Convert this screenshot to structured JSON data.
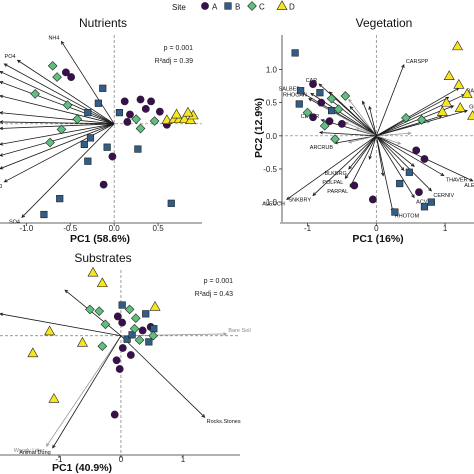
{
  "legend": {
    "title": "Site",
    "items": [
      {
        "label": "A",
        "color": "#3b0f4f",
        "shape": "circle"
      },
      {
        "label": "B",
        "color": "#2f5f86",
        "shape": "square"
      },
      {
        "label": "C",
        "color": "#5fbf7f",
        "shape": "diamond"
      },
      {
        "label": "D",
        "color": "#f6e51f",
        "shape": "triangle"
      }
    ]
  },
  "chart_data": [
    {
      "type": "scatter",
      "title": "Nutrients",
      "xlabel": "PC1 (58.6%)",
      "ylabel": "",
      "xlim": [
        -1.3,
        1.0
      ],
      "ylim": [
        -1.05,
        0.95
      ],
      "xticks": [
        -1.0,
        -0.5,
        0.0,
        0.5
      ],
      "xtick_labels": [
        "-1.0",
        "-0.5",
        "0.0",
        "0.5"
      ],
      "yticks": [],
      "grid": false,
      "p_text": "p = 0.001",
      "r2_text": "R²adj = 0.39",
      "vectors": [
        {
          "label": "NH4",
          "x": -0.6,
          "y": 0.88
        },
        {
          "label": "PO4",
          "x": -1.1,
          "y": 0.68
        },
        {
          "label": "",
          "x": -1.25,
          "y": 0.64
        },
        {
          "label": "",
          "x": -1.3,
          "y": 0.56
        },
        {
          "label": "",
          "x": -1.3,
          "y": 0.45
        },
        {
          "label": "",
          "x": -1.3,
          "y": 0.3
        },
        {
          "label": "",
          "x": -1.3,
          "y": 0.12
        },
        {
          "label": "",
          "x": -1.3,
          "y": 0.02
        },
        {
          "label": "",
          "x": -1.3,
          "y": -0.05
        },
        {
          "label": "",
          "x": -1.3,
          "y": -0.22
        },
        {
          "label": "",
          "x": -1.3,
          "y": -0.34
        },
        {
          "label": "",
          "x": -1.3,
          "y": -0.48
        },
        {
          "label": "Cl",
          "x": -1.25,
          "y": -0.62
        },
        {
          "label": "SO4",
          "x": -1.05,
          "y": -1.0
        }
      ],
      "points": [
        {
          "site": "A",
          "x": -0.55,
          "y": 0.55
        },
        {
          "site": "A",
          "x": -0.49,
          "y": 0.5
        },
        {
          "site": "A",
          "x": 0.12,
          "y": 0.24
        },
        {
          "site": "A",
          "x": 0.3,
          "y": 0.26
        },
        {
          "site": "A",
          "x": 0.42,
          "y": 0.24
        },
        {
          "site": "A",
          "x": 0.36,
          "y": 0.16
        },
        {
          "site": "A",
          "x": 0.52,
          "y": 0.13
        },
        {
          "site": "A",
          "x": 0.18,
          "y": 0.1
        },
        {
          "site": "A",
          "x": 0.15,
          "y": 0.02
        },
        {
          "site": "A",
          "x": 0.6,
          "y": -0.01
        },
        {
          "site": "A",
          "x": -0.02,
          "y": -0.35
        },
        {
          "site": "A",
          "x": -0.12,
          "y": -0.65
        },
        {
          "site": "B",
          "x": -0.13,
          "y": 0.38
        },
        {
          "site": "B",
          "x": -0.18,
          "y": 0.22
        },
        {
          "site": "B",
          "x": -0.3,
          "y": 0.12
        },
        {
          "site": "B",
          "x": 0.06,
          "y": 0.12
        },
        {
          "site": "B",
          "x": -0.27,
          "y": -0.15
        },
        {
          "site": "B",
          "x": -0.34,
          "y": -0.22
        },
        {
          "site": "B",
          "x": -0.08,
          "y": -0.25
        },
        {
          "site": "B",
          "x": 0.27,
          "y": -0.27
        },
        {
          "site": "B",
          "x": -0.3,
          "y": -0.4
        },
        {
          "site": "B",
          "x": -0.62,
          "y": -0.8
        },
        {
          "site": "B",
          "x": -0.8,
          "y": -0.97
        },
        {
          "site": "B",
          "x": 0.65,
          "y": -0.85
        },
        {
          "site": "C",
          "x": -0.7,
          "y": 0.62
        },
        {
          "site": "C",
          "x": -0.65,
          "y": 0.5
        },
        {
          "site": "C",
          "x": -0.9,
          "y": 0.32
        },
        {
          "site": "C",
          "x": -0.53,
          "y": 0.2
        },
        {
          "site": "C",
          "x": -0.42,
          "y": 0.05
        },
        {
          "site": "C",
          "x": -0.6,
          "y": -0.06
        },
        {
          "site": "C",
          "x": -0.73,
          "y": -0.2
        },
        {
          "site": "C",
          "x": 0.25,
          "y": 0.05
        },
        {
          "site": "C",
          "x": 0.46,
          "y": 0.03
        },
        {
          "site": "C",
          "x": 0.3,
          "y": -0.05
        },
        {
          "site": "D",
          "x": 0.6,
          "y": 0.04
        },
        {
          "site": "D",
          "x": 0.68,
          "y": 0.05
        },
        {
          "site": "D",
          "x": 0.74,
          "y": 0.05
        },
        {
          "site": "D",
          "x": 0.8,
          "y": 0.05
        },
        {
          "site": "D",
          "x": 0.87,
          "y": 0.04
        },
        {
          "site": "D",
          "x": 0.9,
          "y": 0.09
        },
        {
          "site": "D",
          "x": 0.84,
          "y": 0.12
        },
        {
          "site": "D",
          "x": 0.71,
          "y": 0.1
        }
      ]
    },
    {
      "type": "scatter",
      "title": "Vegetation",
      "xlabel": "PC1 (16%)",
      "ylabel": "PC2 (12.9%)",
      "xlim": [
        -1.4,
        1.42
      ],
      "ylim": [
        -1.3,
        1.52
      ],
      "xticks": [
        -1.0,
        0.0,
        1.0
      ],
      "xtick_labels": [
        "-1",
        "0",
        "1"
      ],
      "yticks": [
        1.0,
        0.5,
        0.0,
        -0.5,
        -1.0
      ],
      "ytick_labels": [
        "1.0",
        "0.5",
        "0.0",
        "-0.5",
        "-1.0"
      ],
      "grid": false,
      "vectors": [
        {
          "label": "CARSPP",
          "x": 0.4,
          "y": 1.07,
          "grey": false
        },
        {
          "label": "CAR",
          "x": -0.83,
          "y": 0.78,
          "grey": false
        },
        {
          "label": "SALBEB",
          "x": -1.08,
          "y": 0.65,
          "grey": false
        },
        {
          "label": "",
          "x": -0.95,
          "y": 0.64,
          "grey": false
        },
        {
          "label": "",
          "x": -0.68,
          "y": 0.66,
          "grey": false
        },
        {
          "label": "RHOCAN",
          "x": -0.98,
          "y": 0.56,
          "grey": false
        },
        {
          "label": "",
          "x": -0.7,
          "y": 0.57,
          "grey": false
        },
        {
          "label": "",
          "x": -0.4,
          "y": 0.55,
          "grey": true
        },
        {
          "label": "",
          "x": -0.85,
          "y": 0.48,
          "grey": true
        },
        {
          "label": "",
          "x": -0.2,
          "y": 0.52,
          "grey": false
        },
        {
          "label": "",
          "x": -0.1,
          "y": 0.44,
          "grey": false
        },
        {
          "label": "",
          "x": -0.38,
          "y": 0.44,
          "grey": false
        },
        {
          "label": "CETER",
          "x": -0.8,
          "y": 0.24,
          "grey": false
        },
        {
          "label": "",
          "x": -0.45,
          "y": 0.2,
          "grey": true
        },
        {
          "label": "",
          "x": -0.3,
          "y": 0.1,
          "grey": true
        },
        {
          "label": "ARCRUB",
          "x": -0.6,
          "y": -0.11,
          "grey": false
        },
        {
          "label": "",
          "x": -0.4,
          "y": -0.1,
          "grey": true
        },
        {
          "label": "",
          "x": -0.82,
          "y": 0.05,
          "grey": false
        },
        {
          "label": "BLKBRG",
          "x": -0.4,
          "y": -0.5,
          "grey": false
        },
        {
          "label": "POLPAL",
          "x": -0.45,
          "y": -0.64,
          "grey": false
        },
        {
          "label": "PARPAL",
          "x": -0.38,
          "y": -0.77,
          "grey": false
        },
        {
          "label": "SNKBRY",
          "x": -0.92,
          "y": -0.9,
          "grey": false
        },
        {
          "label": "ALEOCH",
          "x": -1.3,
          "y": -0.96,
          "grey": false
        },
        {
          "label": "RHOTOM",
          "x": 0.24,
          "y": -1.14,
          "grey": false
        },
        {
          "label": "ACVIT",
          "x": 0.55,
          "y": -0.93,
          "grey": false
        },
        {
          "label": "CERNIV",
          "x": 0.8,
          "y": -0.83,
          "grey": false
        },
        {
          "label": "THAVER",
          "x": 0.98,
          "y": -0.6,
          "grey": false
        },
        {
          "label": "ALE",
          "x": 1.4,
          "y": -0.68,
          "grey": false
        },
        {
          "label": "",
          "x": 0.4,
          "y": -0.52,
          "grey": false
        },
        {
          "label": "",
          "x": 0.55,
          "y": -0.46,
          "grey": false
        },
        {
          "label": "",
          "x": 0.35,
          "y": -0.12,
          "grey": true
        },
        {
          "label": "",
          "x": 0.5,
          "y": 0.04,
          "grey": true
        },
        {
          "label": "",
          "x": 0.78,
          "y": 0.22,
          "grey": true
        },
        {
          "label": "",
          "x": 1.05,
          "y": 0.58,
          "grey": false
        },
        {
          "label": "",
          "x": 1.12,
          "y": 0.45,
          "grey": false
        },
        {
          "label": "",
          "x": 1.2,
          "y": 0.72,
          "grey": false
        },
        {
          "label": "",
          "x": 0.95,
          "y": 0.3,
          "grey": false
        },
        {
          "label": "GESPP",
          "x": 1.32,
          "y": 0.38,
          "grey": false
        },
        {
          "label": "RA",
          "x": 1.28,
          "y": 0.62,
          "grey": false
        },
        {
          "label": "",
          "x": -0.1,
          "y": -0.35,
          "grey": false
        },
        {
          "label": "",
          "x": 0.1,
          "y": -0.6,
          "grey": false
        }
      ],
      "points": [
        {
          "site": "A",
          "x": -0.92,
          "y": 0.78
        },
        {
          "site": "A",
          "x": -0.8,
          "y": 0.5
        },
        {
          "site": "A",
          "x": -0.92,
          "y": 0.28
        },
        {
          "site": "A",
          "x": -0.68,
          "y": 0.22
        },
        {
          "site": "A",
          "x": -0.5,
          "y": 0.18
        },
        {
          "site": "A",
          "x": 0.58,
          "y": -0.22
        },
        {
          "site": "A",
          "x": 0.7,
          "y": -0.35
        },
        {
          "site": "A",
          "x": -0.32,
          "y": -0.75
        },
        {
          "site": "A",
          "x": -0.05,
          "y": -0.96
        },
        {
          "site": "A",
          "x": 0.62,
          "y": -0.85
        },
        {
          "site": "B",
          "x": -1.18,
          "y": 1.25
        },
        {
          "site": "B",
          "x": -1.1,
          "y": 0.68
        },
        {
          "site": "B",
          "x": -1.12,
          "y": 0.48
        },
        {
          "site": "B",
          "x": -0.82,
          "y": 0.65
        },
        {
          "site": "B",
          "x": -0.65,
          "y": 0.38
        },
        {
          "site": "B",
          "x": 0.48,
          "y": -0.55
        },
        {
          "site": "B",
          "x": 0.34,
          "y": -0.72
        },
        {
          "site": "B",
          "x": 0.8,
          "y": -1.0
        },
        {
          "site": "B",
          "x": 0.7,
          "y": -1.07
        },
        {
          "site": "B",
          "x": 0.27,
          "y": -1.15
        },
        {
          "site": "C",
          "x": -0.65,
          "y": 0.56
        },
        {
          "site": "C",
          "x": -0.45,
          "y": 0.6
        },
        {
          "site": "C",
          "x": -0.55,
          "y": 0.4
        },
        {
          "site": "C",
          "x": -1.0,
          "y": 0.35
        },
        {
          "site": "C",
          "x": -0.75,
          "y": 0.15
        },
        {
          "site": "C",
          "x": -0.6,
          "y": -0.05
        },
        {
          "site": "C",
          "x": 0.66,
          "y": 0.24
        },
        {
          "site": "C",
          "x": 0.43,
          "y": 0.27
        },
        {
          "site": "D",
          "x": 1.18,
          "y": 1.35
        },
        {
          "site": "D",
          "x": 1.06,
          "y": 0.9
        },
        {
          "site": "D",
          "x": 1.2,
          "y": 0.77
        },
        {
          "site": "D",
          "x": 1.32,
          "y": 0.63
        },
        {
          "site": "D",
          "x": 1.22,
          "y": 0.42
        },
        {
          "site": "D",
          "x": 1.02,
          "y": 0.5
        },
        {
          "site": "D",
          "x": 0.96,
          "y": 0.36
        },
        {
          "site": "D",
          "x": 1.4,
          "y": 0.3
        }
      ]
    },
    {
      "type": "scatter",
      "title": "Substrates",
      "xlabel": "PC1 (40.9%)",
      "ylabel": "",
      "xlim": [
        -1.95,
        1.92
      ],
      "ylim": [
        -1.35,
        0.75
      ],
      "xticks": [
        -1,
        0,
        1
      ],
      "xtick_labels": [
        "-1",
        "0",
        "1"
      ],
      "yticks": [],
      "grid": false,
      "p_text": "p = 0.001",
      "r2_text": "R²adj = 0.43",
      "vectors": [
        {
          "label": "Bare Soil",
          "x": 1.7,
          "y": 0.02,
          "grey": true
        },
        {
          "label": "Rocks.Stones",
          "x": 1.35,
          "y": -0.93,
          "grey": false
        },
        {
          "label": "Woody Litter",
          "x": -1.2,
          "y": -1.26,
          "grey": true
        },
        {
          "label": "Animal Dung",
          "x": -1.1,
          "y": -1.28,
          "grey": false
        },
        {
          "label": "",
          "x": -1.95,
          "y": 0.25,
          "grey": false
        },
        {
          "label": "",
          "x": -0.9,
          "y": 0.52,
          "grey": false
        }
      ],
      "points": [
        {
          "site": "A",
          "x": -0.05,
          "y": 0.22
        },
        {
          "site": "A",
          "x": 0.02,
          "y": 0.15
        },
        {
          "site": "A",
          "x": 0.35,
          "y": 0.06
        },
        {
          "site": "A",
          "x": 0.48,
          "y": 0.1
        },
        {
          "site": "A",
          "x": 0.03,
          "y": -0.14
        },
        {
          "site": "A",
          "x": 0.16,
          "y": -0.22
        },
        {
          "site": "A",
          "x": -0.07,
          "y": -0.28
        },
        {
          "site": "A",
          "x": -0.02,
          "y": -0.38
        },
        {
          "site": "A",
          "x": -0.1,
          "y": -0.9
        },
        {
          "site": "B",
          "x": 0.02,
          "y": 0.35
        },
        {
          "site": "B",
          "x": 0.4,
          "y": 0.25
        },
        {
          "site": "B",
          "x": 0.53,
          "y": 0.08
        },
        {
          "site": "B",
          "x": 0.45,
          "y": -0.07
        },
        {
          "site": "B",
          "x": 0.1,
          "y": -0.04
        },
        {
          "site": "B",
          "x": 0.18,
          "y": 0.01
        },
        {
          "site": "C",
          "x": -0.5,
          "y": 0.3
        },
        {
          "site": "C",
          "x": -0.35,
          "y": 0.28
        },
        {
          "site": "C",
          "x": -0.25,
          "y": 0.13
        },
        {
          "site": "C",
          "x": 0.14,
          "y": 0.3
        },
        {
          "site": "C",
          "x": 0.24,
          "y": 0.2
        },
        {
          "site": "C",
          "x": 0.22,
          "y": 0.08
        },
        {
          "site": "C",
          "x": -0.3,
          "y": -0.12
        },
        {
          "site": "C",
          "x": 0.3,
          "y": -0.05
        },
        {
          "site": "C",
          "x": 0.52,
          "y": 0.0
        },
        {
          "site": "D",
          "x": -0.45,
          "y": 0.72
        },
        {
          "site": "D",
          "x": -0.3,
          "y": 0.6
        },
        {
          "site": "D",
          "x": -1.15,
          "y": 0.05
        },
        {
          "site": "D",
          "x": -1.42,
          "y": -0.2
        },
        {
          "site": "D",
          "x": -0.62,
          "y": -0.08
        },
        {
          "site": "D",
          "x": 0.55,
          "y": 0.33
        },
        {
          "site": "D",
          "x": -1.08,
          "y": -0.72
        }
      ]
    }
  ]
}
